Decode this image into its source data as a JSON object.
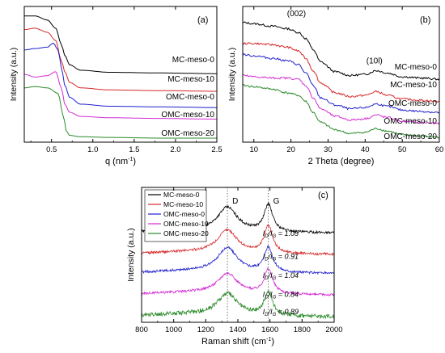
{
  "chart_data": [
    {
      "id": "a",
      "type": "line",
      "panel_label": "(a)",
      "xlabel": "q (nm",
      "xlabel_sup": "-1",
      "xlabel_tail": ")",
      "ylabel": "Intensity (a.u.)",
      "xlim": [
        0.17,
        2.5
      ],
      "x_ticks": [
        "0.5",
        "1.0",
        "1.5",
        "2.0",
        "2.5"
      ],
      "x_tick_values": [
        0.5,
        1.0,
        1.5,
        2.0,
        2.5
      ],
      "y_ticks_labeled": false,
      "series": [
        {
          "name": "MC-meso-0",
          "color": "#000000",
          "x": [
            0.17,
            0.3,
            0.45,
            0.55,
            0.62,
            0.66,
            0.72,
            0.85,
            1.2,
            1.8,
            2.5
          ],
          "y": [
            93,
            93,
            90,
            84,
            72,
            64,
            57,
            53,
            51.5,
            51,
            50.5
          ]
        },
        {
          "name": "MC-meso-10",
          "color": "#d62728",
          "x": [
            0.17,
            0.3,
            0.45,
            0.55,
            0.62,
            0.66,
            0.72,
            0.85,
            1.2,
            1.8,
            2.5
          ],
          "y": [
            83,
            84,
            81,
            75,
            60,
            52,
            44,
            40,
            38.5,
            38,
            37.5
          ]
        },
        {
          "name": "OMC-meso-0",
          "color": "#1f1fcc",
          "x": [
            0.17,
            0.3,
            0.45,
            0.52,
            0.58,
            0.62,
            0.66,
            0.72,
            0.85,
            1.2,
            1.8,
            2.5
          ],
          "y": [
            68,
            69,
            70,
            73,
            68,
            55,
            42,
            33,
            28,
            26.5,
            26,
            25.5
          ]
        },
        {
          "name": "OMC-meso-10",
          "color": "#d42cd4",
          "x": [
            0.17,
            0.3,
            0.45,
            0.55,
            0.62,
            0.66,
            0.72,
            0.85,
            1.2,
            1.8,
            2.5
          ],
          "y": [
            50,
            48,
            49,
            52,
            40,
            28,
            22,
            19,
            18,
            17.5,
            17
          ]
        },
        {
          "name": "OMC-meso-20",
          "color": "#2a8a2a",
          "x": [
            0.17,
            0.3,
            0.45,
            0.58,
            0.64,
            0.68,
            0.72,
            0.85,
            1.2,
            1.8,
            2.5
          ],
          "y": [
            40,
            41,
            40,
            36,
            20,
            8,
            5,
            4,
            3.5,
            3,
            3
          ]
        }
      ],
      "ylim": [
        0,
        100
      ]
    },
    {
      "id": "b",
      "type": "line",
      "panel_label": "(b)",
      "xlabel": "2 Theta (degree)",
      "ylabel": "Intensity (a.u.)",
      "xlim": [
        7,
        60
      ],
      "x_ticks": [
        "10",
        "20",
        "30",
        "40",
        "50",
        "60"
      ],
      "x_tick_values": [
        10,
        20,
        30,
        40,
        50,
        60
      ],
      "y_ticks_labeled": false,
      "annotations": [
        {
          "text": "(002)",
          "x": 21.5,
          "y": 102
        },
        {
          "text": "(10l)",
          "x": 42.5,
          "y": 64
        }
      ],
      "series": [
        {
          "name": "MC-meso-0",
          "color": "#000000",
          "x": [
            7,
            10,
            15,
            19,
            22,
            24,
            26,
            28,
            32,
            36,
            40,
            43,
            46,
            50,
            55,
            60
          ],
          "y": [
            97,
            96,
            94,
            92,
            89,
            84,
            75,
            65,
            57,
            54,
            55,
            58,
            56,
            53,
            52,
            51
          ]
        },
        {
          "name": "MC-meso-10",
          "color": "#d62728",
          "x": [
            7,
            10,
            15,
            19,
            22,
            24,
            26,
            28,
            32,
            36,
            40,
            43,
            46,
            50,
            55,
            60
          ],
          "y": [
            80,
            80,
            79,
            77,
            74,
            68,
            58,
            48,
            40,
            37,
            38,
            41,
            38,
            35,
            34,
            33
          ]
        },
        {
          "name": "OMC-meso-0",
          "color": "#1f1fcc",
          "x": [
            7,
            10,
            15,
            19,
            22,
            24,
            26,
            28,
            32,
            36,
            40,
            43,
            46,
            50,
            55,
            60
          ],
          "y": [
            71,
            70,
            68,
            66,
            63,
            56,
            46,
            36,
            30,
            27,
            28,
            31,
            29,
            26,
            25,
            24
          ]
        },
        {
          "name": "OMC-meso-10",
          "color": "#d42cd4",
          "x": [
            7,
            10,
            15,
            19,
            22,
            24,
            26,
            28,
            32,
            36,
            40,
            43,
            46,
            50,
            55,
            60
          ],
          "y": [
            54,
            53,
            52,
            52,
            51,
            46,
            36,
            27,
            21,
            18,
            19,
            22,
            20,
            17,
            16,
            15
          ]
        },
        {
          "name": "OMC-meso-20",
          "color": "#2a8a2a",
          "x": [
            7,
            10,
            15,
            19,
            22,
            24,
            26,
            28,
            32,
            36,
            40,
            43,
            46,
            50,
            55,
            60
          ],
          "y": [
            46,
            45,
            43,
            40,
            38,
            33,
            24,
            16,
            10,
            7,
            8,
            11,
            9,
            6,
            5,
            4
          ]
        }
      ],
      "ylim": [
        0,
        110
      ]
    },
    {
      "id": "c",
      "type": "line",
      "panel_label": "(c)",
      "xlabel": "Raman shift  (cm",
      "xlabel_sup": "-1",
      "xlabel_tail": ")",
      "ylabel": "Intensity (a.u.)",
      "xlim": [
        800,
        2000
      ],
      "x_ticks": [
        "800",
        "1000",
        "1200",
        "1400",
        "1600",
        "1800",
        "2000"
      ],
      "x_tick_values": [
        800,
        1000,
        1200,
        1400,
        1600,
        1800,
        2000
      ],
      "y_ticks_labeled": false,
      "legend_position": "top-left",
      "markers": [
        {
          "label": "D",
          "x": 1335
        },
        {
          "label": "G",
          "x": 1590
        }
      ],
      "ratios": [
        {
          "text": "I",
          "sub1": "D",
          "slash": "/I",
          "sub2": "G",
          "value": " = 1.05",
          "y": 64
        },
        {
          "text": "I",
          "sub1": "D",
          "slash": "/I",
          "sub2": "G",
          "value": " = 0.91",
          "y": 47
        },
        {
          "text": "I",
          "sub1": "D",
          "slash": "/I",
          "sub2": "G",
          "value": " = 1.04",
          "y": 33
        },
        {
          "text": "I",
          "sub1": "D",
          "slash": "/I",
          "sub2": "G",
          "value": " = 0.84",
          "y": 19
        },
        {
          "text": "I",
          "sub1": "D",
          "slash": "/I",
          "sub2": "G",
          "value": " = 0.89",
          "y": 6
        }
      ],
      "series": [
        {
          "name": "MC-meso-0",
          "color": "#000000",
          "offset": 66,
          "d_amp": 18,
          "g_amp": 20,
          "base": 0
        },
        {
          "name": "MC-meso-10",
          "color": "#d62728",
          "offset": 50,
          "d_amp": 17,
          "g_amp": 20,
          "base": 0
        },
        {
          "name": "OMC-meso-0",
          "color": "#1f1fcc",
          "offset": 36,
          "d_amp": 18,
          "g_amp": 18,
          "base": 0
        },
        {
          "name": "OMC-meso-10",
          "color": "#d42cd4",
          "offset": 20,
          "d_amp": 15,
          "g_amp": 18,
          "base": 0
        },
        {
          "name": "OMC-meso-20",
          "color": "#2a8a2a",
          "offset": 4,
          "d_amp": 16,
          "g_amp": 17,
          "base": 0
        }
      ],
      "ylim": [
        0,
        100
      ]
    }
  ]
}
